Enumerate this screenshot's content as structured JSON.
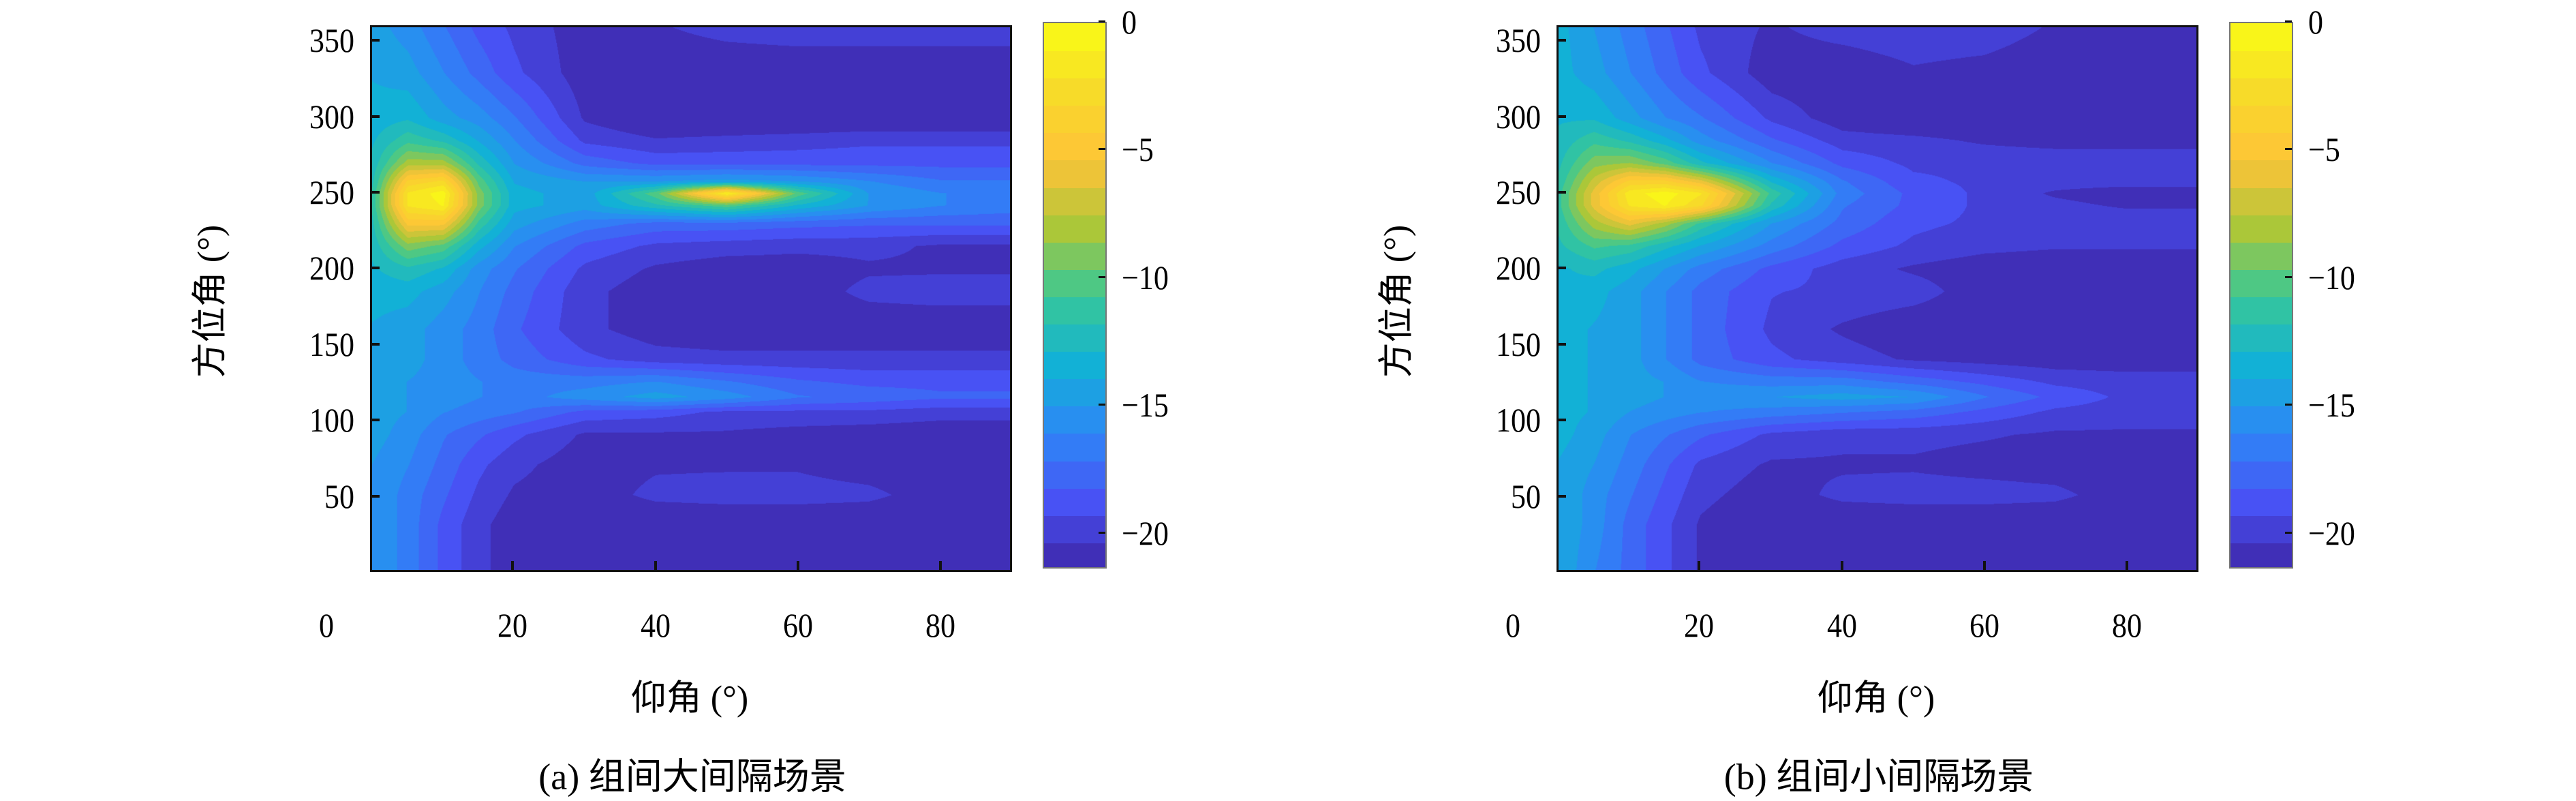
{
  "chart_data": [
    {
      "type": "heatmap",
      "caption": "(a) 组间大间隔场景",
      "xlabel": "仰角 (°)",
      "ylabel": "方位角 (°)",
      "xlim": [
        0,
        90
      ],
      "ylim": [
        0,
        360
      ],
      "xticks": [
        0,
        20,
        40,
        60,
        80
      ],
      "xtick_labels": [
        "0",
        "20",
        "40",
        "60",
        "80"
      ],
      "yticks": [
        50,
        100,
        150,
        200,
        250,
        300,
        350
      ],
      "ytick_labels": [
        "50",
        "100",
        "150",
        "200",
        "250",
        "300",
        "350"
      ],
      "colorbar": {
        "range": [
          -21.4,
          0
        ],
        "ticks": [
          0,
          -5,
          -10,
          -15,
          -20
        ],
        "tick_labels": [
          "0",
          "−5",
          "−10",
          "−15",
          "−20"
        ],
        "colormap": "parula",
        "levels": 20
      },
      "x": [
        0,
        5,
        10,
        15,
        20,
        30,
        40,
        50,
        60,
        70,
        80,
        90
      ],
      "y": [
        0,
        30,
        50,
        70,
        90,
        105,
        115,
        125,
        140,
        160,
        185,
        200,
        215,
        230,
        242,
        250,
        258,
        270,
        285,
        300,
        330,
        360
      ],
      "z": [
        [
          -15,
          -16.5,
          -18.5,
          -20,
          -21,
          -21.5,
          -21.5,
          -21.5,
          -21.5,
          -21.5,
          -21.5,
          -21.5
        ],
        [
          -15,
          -16.5,
          -18.5,
          -20,
          -21,
          -21.5,
          -21.5,
          -21.5,
          -21.5,
          -21.5,
          -21.5,
          -21.5
        ],
        [
          -15,
          -16.5,
          -18,
          -19.5,
          -20.5,
          -21,
          -20,
          -19.8,
          -19.8,
          -20,
          -21,
          -21.5
        ],
        [
          -15,
          -16,
          -17.5,
          -19,
          -20,
          -21,
          -20.5,
          -20.5,
          -20.5,
          -21,
          -21.5,
          -21.5
        ],
        [
          -14.5,
          -15.5,
          -17,
          -18,
          -19,
          -20.5,
          -20.5,
          -20.5,
          -20.8,
          -21,
          -21.2,
          -21.2
        ],
        [
          -14.5,
          -15,
          -16,
          -16.5,
          -17,
          -18.5,
          -18.8,
          -19.5,
          -19.5,
          -19.5,
          -19.8,
          -19.8
        ],
        [
          -14.5,
          -15,
          -15.5,
          -16,
          -16.5,
          -15.5,
          -14.5,
          -15.5,
          -17,
          -17.5,
          -18,
          -18
        ],
        [
          -14.5,
          -15,
          -15.5,
          -16,
          -16.5,
          -16.5,
          -16,
          -17,
          -18,
          -18.5,
          -18.5,
          -18.5
        ],
        [
          -14,
          -14.5,
          -15.5,
          -16.5,
          -17.5,
          -19,
          -19.8,
          -20,
          -20,
          -20,
          -20,
          -20
        ],
        [
          -14,
          -14.5,
          -15.5,
          -16.5,
          -18,
          -20,
          -21,
          -21.2,
          -21.2,
          -21.2,
          -21.2,
          -21.2
        ],
        [
          -13.5,
          -13.5,
          -14.5,
          -16,
          -17.5,
          -20,
          -21,
          -21.2,
          -21,
          -20,
          -19.8,
          -19.8
        ],
        [
          -13,
          -12,
          -13,
          -15.5,
          -17,
          -19.5,
          -20.5,
          -21,
          -21,
          -20.5,
          -20.5,
          -20.5
        ],
        [
          -12.5,
          -9,
          -10,
          -13.5,
          -16,
          -18.5,
          -19.5,
          -19.8,
          -20,
          -20,
          -20.5,
          -20.5
        ],
        [
          -12,
          -5,
          -5,
          -11,
          -14.5,
          -16.5,
          -17.5,
          -17.5,
          -17.8,
          -18,
          -18,
          -18
        ],
        [
          -11.5,
          -2,
          -1,
          -9,
          -13.5,
          -14.5,
          -12,
          -10,
          -13,
          -15,
          -16,
          -16.5
        ],
        [
          -11.5,
          -2,
          -0.5,
          -9,
          -13.5,
          -14.5,
          -10,
          -1,
          -10,
          -15,
          -16,
          -16.5
        ],
        [
          -12,
          -4,
          -3,
          -10,
          -14,
          -15,
          -15,
          -14.5,
          -15,
          -16,
          -17,
          -17
        ],
        [
          -12.5,
          -8,
          -8,
          -12,
          -15,
          -17.5,
          -18.5,
          -18.5,
          -18.5,
          -18.5,
          -18.5,
          -18.5
        ],
        [
          -13,
          -11,
          -12,
          -14,
          -16,
          -19.5,
          -20.2,
          -20,
          -19.8,
          -19.5,
          -19.5,
          -19.5
        ],
        [
          -13.5,
          -13,
          -14.5,
          -15.5,
          -17,
          -20.5,
          -21.5,
          -21.5,
          -21.5,
          -21.5,
          -21.5,
          -21.5
        ],
        [
          -14,
          -14.5,
          -16,
          -17.5,
          -19,
          -21,
          -21.5,
          -21.5,
          -21.5,
          -21.5,
          -21.5,
          -21.5
        ],
        [
          -14.5,
          -15.5,
          -17,
          -18.5,
          -19.5,
          -21,
          -20.5,
          -19.8,
          -19.5,
          -19.5,
          -19.5,
          -19.5
        ]
      ]
    },
    {
      "type": "heatmap",
      "caption": "(b) 组间小间隔场景",
      "xlabel": "仰角 (°)",
      "ylabel": "方位角 (°)",
      "xlim": [
        0,
        90
      ],
      "ylim": [
        0,
        360
      ],
      "xticks": [
        0,
        20,
        40,
        60,
        80
      ],
      "xtick_labels": [
        "0",
        "20",
        "40",
        "60",
        "80"
      ],
      "yticks": [
        50,
        100,
        150,
        200,
        250,
        300,
        350
      ],
      "ytick_labels": [
        "50",
        "100",
        "150",
        "200",
        "250",
        "300",
        "350"
      ],
      "colorbar": {
        "range": [
          -21.4,
          0
        ],
        "ticks": [
          0,
          -5,
          -10,
          -15,
          -20
        ],
        "tick_labels": [
          "0",
          "−5",
          "−10",
          "−15",
          "−20"
        ],
        "colormap": "parula",
        "levels": 20
      },
      "x": [
        0,
        5,
        10,
        15,
        20,
        30,
        40,
        50,
        60,
        70,
        80,
        90
      ],
      "y": [
        0,
        30,
        50,
        70,
        90,
        105,
        115,
        125,
        140,
        160,
        185,
        200,
        215,
        230,
        242,
        250,
        258,
        270,
        285,
        300,
        330,
        360
      ],
      "z": [
        [
          -14,
          -16,
          -17.5,
          -19,
          -20.5,
          -21.5,
          -21.5,
          -21.5,
          -21.5,
          -21.5,
          -21.5,
          -21.5
        ],
        [
          -14,
          -15.5,
          -17.5,
          -19,
          -20.5,
          -21.5,
          -21.5,
          -21.5,
          -21.5,
          -21.5,
          -21.5,
          -21.5
        ],
        [
          -14,
          -15.5,
          -17,
          -18.5,
          -20,
          -21,
          -20,
          -19.8,
          -19.8,
          -20,
          -21,
          -21.5
        ],
        [
          -14,
          -15,
          -16.5,
          -18,
          -19.5,
          -20.5,
          -20.5,
          -20.5,
          -20.8,
          -21,
          -21.5,
          -21.5
        ],
        [
          -13.5,
          -14.5,
          -16,
          -17,
          -18,
          -19.5,
          -20,
          -20,
          -20.2,
          -20.5,
          -20.5,
          -20.5
        ],
        [
          -13.5,
          -14,
          -15,
          -15.5,
          -16,
          -16.5,
          -17,
          -17.5,
          -18.5,
          -19.5,
          -19.8,
          -19.8
        ],
        [
          -13.5,
          -14,
          -14.5,
          -15,
          -15.5,
          -15,
          -14.5,
          -15,
          -17,
          -18.5,
          -19.5,
          -19.5
        ],
        [
          -13.5,
          -14,
          -14.5,
          -15,
          -16,
          -16.5,
          -16.5,
          -17.5,
          -18.5,
          -19.5,
          -19.8,
          -19.8
        ],
        [
          -13.5,
          -14,
          -14.5,
          -16,
          -17.5,
          -19,
          -19.8,
          -20.5,
          -20.8,
          -21,
          -21,
          -21
        ],
        [
          -13.5,
          -14,
          -14.5,
          -16,
          -17.5,
          -19.5,
          -20.5,
          -21.2,
          -21.2,
          -21.2,
          -21.2,
          -21.2
        ],
        [
          -13,
          -13.5,
          -14.5,
          -16,
          -17.5,
          -19.2,
          -19.5,
          -19.8,
          -21,
          -21.2,
          -21.2,
          -21.2
        ],
        [
          -13,
          -12.5,
          -13.5,
          -15,
          -16.5,
          -18.5,
          -19.8,
          -20.5,
          -21,
          -21.2,
          -21.2,
          -21.2
        ],
        [
          -12,
          -10.5,
          -11,
          -12.5,
          -14,
          -16.5,
          -18.5,
          -19.5,
          -20,
          -20.2,
          -20.2,
          -20.2
        ],
        [
          -11.5,
          -8,
          -6,
          -8,
          -11,
          -15,
          -17.5,
          -19,
          -19.5,
          -19.5,
          -19.5,
          -19.5
        ],
        [
          -11,
          -6,
          -2,
          -1,
          -3,
          -12,
          -17,
          -18.5,
          -19.5,
          -20,
          -20.5,
          -20.5
        ],
        [
          -11,
          -6,
          -1.5,
          -0.5,
          -2,
          -11,
          -16.5,
          -18.5,
          -19.5,
          -20.5,
          -21,
          -21
        ],
        [
          -11.5,
          -7,
          -4,
          -4,
          -6,
          -13,
          -17,
          -19,
          -19.5,
          -19.8,
          -19.8,
          -19.8
        ],
        [
          -12,
          -9,
          -8.5,
          -10,
          -12.5,
          -16,
          -18.5,
          -19.5,
          -19.5,
          -19.5,
          -19.5,
          -19.5
        ],
        [
          -12.5,
          -11,
          -12,
          -13.5,
          -15.5,
          -18,
          -19.8,
          -20,
          -20.5,
          -20.8,
          -20.8,
          -20.8
        ],
        [
          -13,
          -13,
          -14.5,
          -16,
          -17,
          -19.5,
          -21,
          -21.5,
          -21.5,
          -21.5,
          -21.5,
          -21.5
        ],
        [
          -13.5,
          -14.5,
          -16,
          -17.5,
          -19,
          -21,
          -21.2,
          -20.5,
          -20.8,
          -21.3,
          -21.5,
          -21.5
        ],
        [
          -13.5,
          -15,
          -16.5,
          -18,
          -19.5,
          -20.5,
          -19.8,
          -19.5,
          -19.6,
          -20.5,
          -21,
          -21.5
        ]
      ]
    }
  ]
}
